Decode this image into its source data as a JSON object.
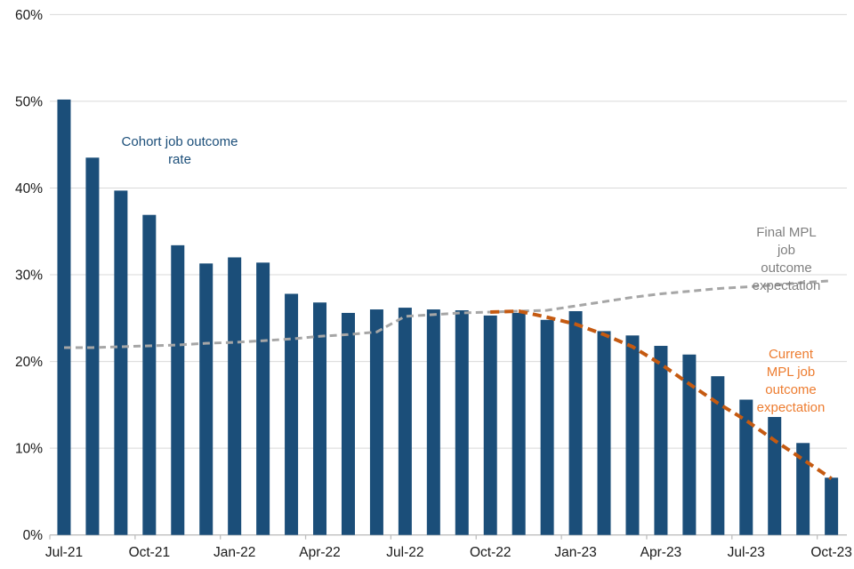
{
  "chart_data": {
    "type": "bar+line",
    "title": "",
    "xlabel": "",
    "ylabel": "",
    "ylim": [
      0,
      60
    ],
    "grid": "horizontal",
    "legend_position": "none (inline text annotations)",
    "categories": [
      "Jul-21",
      "Aug-21",
      "Sep-21",
      "Oct-21",
      "Nov-21",
      "Dec-21",
      "Jan-22",
      "Feb-22",
      "Mar-22",
      "Apr-22",
      "May-22",
      "Jun-22",
      "Jul-22",
      "Aug-22",
      "Sep-22",
      "Oct-22",
      "Nov-22",
      "Dec-22",
      "Jan-23",
      "Feb-23",
      "Mar-23",
      "Apr-23",
      "May-23",
      "Jun-23",
      "Jul-23",
      "Aug-23",
      "Sep-23",
      "Oct-23"
    ],
    "x_tick_labels": [
      "Jul-21",
      "Oct-21",
      "Jan-22",
      "Apr-22",
      "Jul-22",
      "Oct-22",
      "Jan-23",
      "Apr-23",
      "Jul-23",
      "Oct-23"
    ],
    "x_tick_every": 3,
    "y_tick_labels": [
      "0%",
      "10%",
      "20%",
      "30%",
      "40%",
      "50%",
      "60%"
    ],
    "y_tick_values": [
      0,
      10,
      20,
      30,
      40,
      50,
      60
    ],
    "series": [
      {
        "name": "Cohort job outcome rate",
        "type": "bar",
        "color": "#1B4E79",
        "values": [
          50.2,
          43.5,
          39.7,
          36.9,
          33.4,
          31.3,
          32.0,
          31.4,
          27.8,
          26.8,
          25.6,
          26.0,
          26.2,
          26.0,
          25.9,
          25.3,
          25.6,
          24.8,
          25.8,
          23.5,
          23.0,
          21.8,
          20.8,
          18.3,
          15.6,
          13.6,
          10.6,
          6.6
        ]
      },
      {
        "name": "Final MPL job outcome expectation",
        "type": "line",
        "style": "dashed",
        "color": "#A6A6A6",
        "values": [
          21.6,
          21.6,
          21.7,
          21.8,
          21.9,
          22.1,
          22.2,
          22.4,
          22.6,
          22.9,
          23.1,
          23.4,
          25.2,
          25.4,
          25.6,
          25.7,
          25.8,
          25.9,
          26.4,
          26.9,
          27.4,
          27.8,
          28.1,
          28.4,
          28.6,
          28.8,
          29.1,
          29.3
        ]
      },
      {
        "name": "Current MPL job outcome expectation",
        "type": "line",
        "style": "dashed",
        "color": "#C55A11",
        "values": [
          null,
          null,
          null,
          null,
          null,
          null,
          null,
          null,
          null,
          null,
          null,
          null,
          null,
          null,
          null,
          25.7,
          25.8,
          25.1,
          24.3,
          23.1,
          21.7,
          19.7,
          17.4,
          15.2,
          13.2,
          10.9,
          8.7,
          6.5
        ]
      }
    ],
    "annotations": [
      {
        "id": "cohort-label",
        "text": "Cohort job outcome\nrate",
        "color": "#1B4E79",
        "x": 202,
        "y": 150
      },
      {
        "id": "final-label",
        "text": "Final MPL job\noutcome\nexpectation",
        "color": "#7F7F7F",
        "x": 884,
        "y": 252
      },
      {
        "id": "current-label",
        "text": "Current MPL job\noutcome\nexpectation",
        "color": "#ED7D31",
        "x": 889,
        "y": 389
      }
    ],
    "axis_color": "#BFBFBF",
    "gridline_color": "#D9D9D9",
    "tick_label_color": "#1A1A1A"
  }
}
